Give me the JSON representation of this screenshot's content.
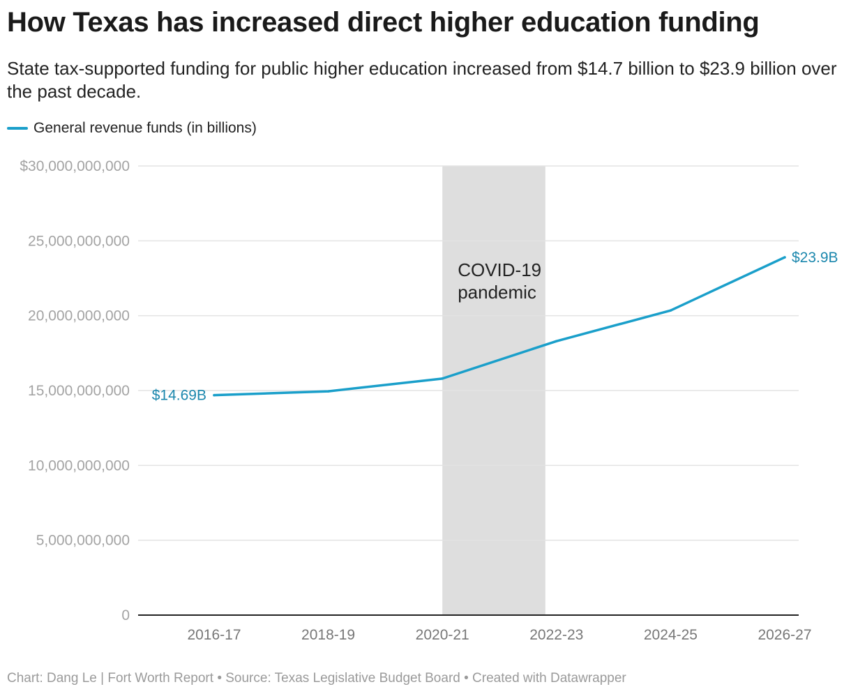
{
  "title": "How Texas has increased direct higher education funding",
  "subtitle": "State tax-supported funding for public higher education increased from $14.7 billion to $23.9 billion over the past decade.",
  "footer": "Chart: Dang Le | Fort Worth Report • Source: Texas Legislative Budget Board • Created with Datawrapper",
  "chart_data": {
    "type": "line",
    "x": [
      "2016-17",
      "2018-19",
      "2020-21",
      "2022-23",
      "2024-25",
      "2026-27"
    ],
    "series": [
      {
        "name": "General revenue funds (in billions)",
        "color": "#1a9fca",
        "values": [
          14690000000,
          14950000000,
          15800000000,
          18300000000,
          20350000000,
          23900000000
        ]
      }
    ],
    "yticks": [
      0,
      5000000000,
      10000000000,
      15000000000,
      20000000000,
      25000000000,
      30000000000
    ],
    "ytick_labels": [
      "0",
      "5,000,000,000",
      "10,000,000,000",
      "15,000,000,000",
      "20,000,000,000",
      "25,000,000,000",
      "$30,000,000,000"
    ],
    "ylim": [
      0,
      30000000000
    ],
    "grid": true,
    "legend_position": "top-left",
    "highlight_range": {
      "from": "2020-21",
      "to": "2022-23",
      "color": "#dedede"
    },
    "annotations": {
      "band_label_lines": [
        "COVID-19",
        "pandemic"
      ],
      "start_value_label": "$14.69B",
      "end_value_label": "$23.9B",
      "value_label_color": "#1b87ad"
    }
  }
}
